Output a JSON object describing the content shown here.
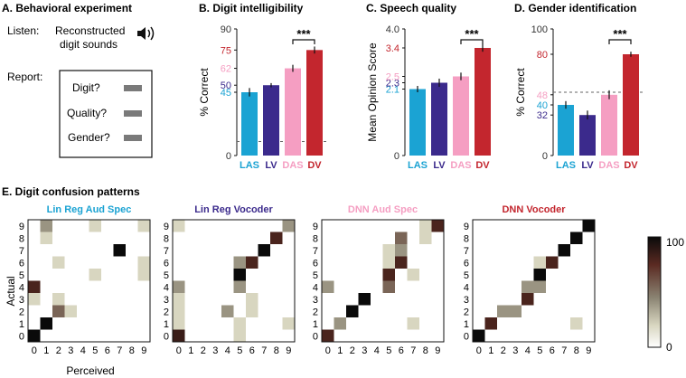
{
  "colors": {
    "LAS": "#1ba3d3",
    "LV": "#3b2a8c",
    "DAS": "#f59ec2",
    "DV": "#c3262e"
  },
  "panel_a": {
    "title": "A. Behavioral experiment",
    "listen_label": "Listen:",
    "listen_text_1": "Reconstructed",
    "listen_text_2": "digit sounds",
    "speaker_icon": "speaker-icon",
    "report_label": "Report:",
    "items": [
      "Digit?",
      "Quality?",
      "Gender?"
    ]
  },
  "chart_data": [
    {
      "type": "bar",
      "title": "B. Digit intelligibility",
      "ylabel": "% Correct",
      "ylim": [
        0,
        90
      ],
      "categories": [
        "LAS",
        "LV",
        "DAS",
        "DV"
      ],
      "values": [
        45,
        50,
        62,
        75
      ],
      "errors": [
        3,
        1.5,
        2.5,
        2.5
      ],
      "chance": 10,
      "ticks": [
        "0",
        "45",
        "50",
        "62",
        "75",
        "90"
      ],
      "tick_values": [
        0,
        45,
        50,
        62,
        75,
        90
      ],
      "tick_colors": [
        "#333333",
        "#1ba3d3",
        "#3b2a8c",
        "#f59ec2",
        "#c3262e",
        "#333333"
      ],
      "significance": "***",
      "sig_between": [
        2,
        3
      ]
    },
    {
      "type": "bar",
      "title": "C. Speech quality",
      "ylabel": "Mean Opinion Score",
      "ylim": [
        0,
        4
      ],
      "categories": [
        "LAS",
        "LV",
        "DAS",
        "DV"
      ],
      "values": [
        2.1,
        2.3,
        2.5,
        3.4
      ],
      "errors": [
        0.1,
        0.13,
        0.12,
        0.12
      ],
      "ticks": [
        "0",
        "2.1",
        "2.3",
        "2.5",
        "3.4",
        "4.0"
      ],
      "tick_values": [
        0,
        2.1,
        2.3,
        2.5,
        3.4,
        4.0
      ],
      "tick_colors": [
        "#333333",
        "#1ba3d3",
        "#3b2a8c",
        "#f59ec2",
        "#c3262e",
        "#333333"
      ],
      "significance": "***",
      "sig_between": [
        2,
        3
      ]
    },
    {
      "type": "bar",
      "title": "D. Gender identification",
      "ylabel": "% Correct",
      "ylim": [
        0,
        100
      ],
      "categories": [
        "LAS",
        "LV",
        "DAS",
        "DV"
      ],
      "values": [
        40,
        32,
        48,
        80
      ],
      "errors": [
        3,
        3.5,
        3.5,
        2
      ],
      "chance": 50,
      "ticks": [
        "0",
        "32",
        "40",
        "48",
        "80",
        "100"
      ],
      "tick_values": [
        0,
        32,
        40,
        48,
        80,
        100
      ],
      "tick_colors": [
        "#333333",
        "#3b2a8c",
        "#1ba3d3",
        "#f59ec2",
        "#c3262e",
        "#333333"
      ],
      "significance": "***",
      "sig_between": [
        2,
        3
      ]
    },
    {
      "type": "heatmap",
      "title": "E. Digit confusion patterns",
      "xlabel": "Perceived",
      "ylabel": "Actual",
      "x_ticks": [
        "0",
        "1",
        "2",
        "3",
        "4",
        "5",
        "6",
        "7",
        "8",
        "9"
      ],
      "y_ticks": [
        "0",
        "1",
        "2",
        "3",
        "4",
        "5",
        "6",
        "7",
        "8",
        "9"
      ],
      "colorbar": {
        "min": 0,
        "max": 100,
        "min_label": "0",
        "max_label": "100"
      },
      "matrices": [
        {
          "name": "Lin Reg Aud Spec",
          "color_key": "LAS",
          "cells": [
            [
              0,
              0,
              100
            ],
            [
              1,
              1,
              100
            ],
            [
              2,
              2,
              55
            ],
            [
              2,
              3,
              20
            ],
            [
              3,
              0,
              20
            ],
            [
              3,
              2,
              20
            ],
            [
              4,
              0,
              80
            ],
            [
              5,
              5,
              20
            ],
            [
              5,
              9,
              20
            ],
            [
              6,
              2,
              20
            ],
            [
              6,
              9,
              20
            ],
            [
              7,
              7,
              100
            ],
            [
              8,
              1,
              20
            ],
            [
              9,
              1,
              40
            ],
            [
              9,
              5,
              20
            ],
            [
              9,
              9,
              20
            ]
          ]
        },
        {
          "name": "Lin Reg Vocoder",
          "color_key": "LV",
          "cells": [
            [
              0,
              0,
              85
            ],
            [
              0,
              5,
              20
            ],
            [
              1,
              0,
              20
            ],
            [
              1,
              5,
              20
            ],
            [
              1,
              9,
              20
            ],
            [
              2,
              0,
              20
            ],
            [
              2,
              4,
              40
            ],
            [
              2,
              6,
              20
            ],
            [
              3,
              0,
              20
            ],
            [
              3,
              6,
              20
            ],
            [
              4,
              0,
              40
            ],
            [
              4,
              5,
              40
            ],
            [
              5,
              5,
              100
            ],
            [
              6,
              5,
              40
            ],
            [
              6,
              6,
              80
            ],
            [
              7,
              7,
              100
            ],
            [
              8,
              8,
              80
            ],
            [
              9,
              0,
              20
            ],
            [
              9,
              9,
              40
            ]
          ]
        },
        {
          "name": "DNN Aud Spec",
          "color_key": "DAS",
          "cells": [
            [
              0,
              0,
              80
            ],
            [
              1,
              1,
              40
            ],
            [
              1,
              7,
              20
            ],
            [
              2,
              2,
              100
            ],
            [
              3,
              3,
              100
            ],
            [
              4,
              0,
              40
            ],
            [
              4,
              5,
              55
            ],
            [
              5,
              5,
              80
            ],
            [
              5,
              7,
              20
            ],
            [
              6,
              6,
              80
            ],
            [
              6,
              5,
              20
            ],
            [
              7,
              5,
              20
            ],
            [
              7,
              6,
              40
            ],
            [
              8,
              6,
              55
            ],
            [
              8,
              8,
              20
            ],
            [
              9,
              8,
              20
            ],
            [
              9,
              9,
              80
            ]
          ]
        },
        {
          "name": "DNN Vocoder",
          "color_key": "DV",
          "cells": [
            [
              0,
              0,
              100
            ],
            [
              1,
              1,
              80
            ],
            [
              1,
              8,
              20
            ],
            [
              2,
              2,
              40
            ],
            [
              2,
              3,
              40
            ],
            [
              3,
              4,
              80
            ],
            [
              4,
              4,
              40
            ],
            [
              4,
              5,
              40
            ],
            [
              5,
              5,
              100
            ],
            [
              6,
              5,
              20
            ],
            [
              6,
              6,
              80
            ],
            [
              7,
              7,
              100
            ],
            [
              8,
              8,
              100
            ],
            [
              9,
              9,
              100
            ]
          ]
        }
      ]
    }
  ]
}
